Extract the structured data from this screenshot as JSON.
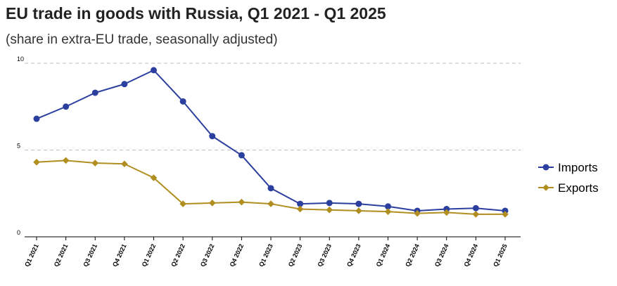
{
  "title": "EU trade in goods with Russia, Q1 2021 - Q1 2025",
  "subtitle": "(share in extra-EU trade, seasonally adjusted)",
  "colors": {
    "imports": "#2a3f9e",
    "exports": "#b08f20",
    "grid": "#bbbbbb",
    "axis": "#000000"
  },
  "chart_data": {
    "type": "line",
    "title": "EU trade in goods with Russia, Q1 2021 - Q1 2025",
    "subtitle": "(share in extra-EU trade, seasonally adjusted)",
    "xlabel": "",
    "ylabel": "",
    "ylim": [
      0,
      10
    ],
    "yticks": [
      0,
      5,
      10
    ],
    "grid": "horizontal dashed",
    "legend": "right",
    "categories": [
      "Q1 2021",
      "Q2 2021",
      "Q3 2021",
      "Q4 2021",
      "Q1 2022",
      "Q2 2022",
      "Q3 2022",
      "Q4 2022",
      "Q1 2023",
      "Q2 2023",
      "Q3 2023",
      "Q4 2023",
      "Q1 2024",
      "Q2 2024",
      "Q3 2024",
      "Q4 2024",
      "Q1 2025"
    ],
    "series": [
      {
        "name": "Imports",
        "marker": "circle",
        "values": [
          6.8,
          7.5,
          8.3,
          8.8,
          9.6,
          7.8,
          5.8,
          4.7,
          2.8,
          1.9,
          1.95,
          1.9,
          1.75,
          1.5,
          1.6,
          1.65,
          1.5
        ]
      },
      {
        "name": "Exports",
        "marker": "diamond",
        "values": [
          4.3,
          4.4,
          4.25,
          4.2,
          3.4,
          1.9,
          1.95,
          2.0,
          1.9,
          1.6,
          1.55,
          1.5,
          1.45,
          1.35,
          1.4,
          1.3,
          1.3
        ]
      }
    ]
  }
}
